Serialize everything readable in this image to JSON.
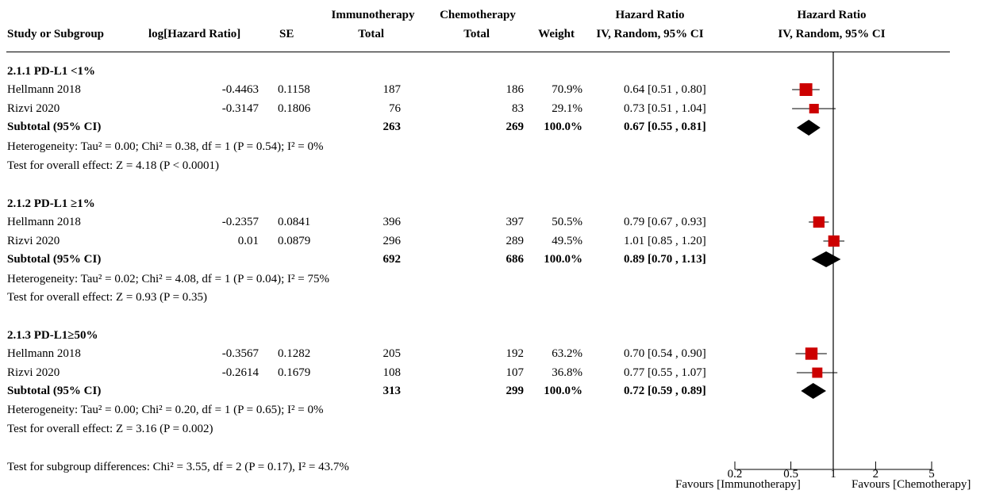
{
  "headers": {
    "study": "Study or Subgroup",
    "loghr": "log[Hazard Ratio]",
    "se": "SE",
    "exp_group": "Immunotherapy",
    "exp_total": "Total",
    "ctl_group": "Chemotherapy",
    "ctl_total": "Total",
    "weight": "Weight",
    "hr_col": "Hazard Ratio",
    "hr_col_method": "IV, Random, 95% CI",
    "plot_col": "Hazard Ratio",
    "plot_col_method": "IV, Random, 95% CI"
  },
  "subgroups": [
    {
      "title": "2.1.1 PD-L1 <1%",
      "studies": [
        {
          "name": "Hellmann 2018",
          "loghr": "-0.4463",
          "se": "0.1158",
          "exp_total": "187",
          "ctl_total": "186",
          "weight": "70.9%",
          "ci_text": "0.64 [0.51 , 0.80]"
        },
        {
          "name": "Rizvi 2020",
          "loghr": "-0.3147",
          "se": "0.1806",
          "exp_total": "76",
          "ctl_total": "83",
          "weight": "29.1%",
          "ci_text": "0.73 [0.51 , 1.04]"
        }
      ],
      "subtotal": {
        "label": "Subtotal (95% CI)",
        "exp_total": "263",
        "ctl_total": "269",
        "weight": "100.0%",
        "ci_text": "0.67 [0.55 , 0.81]"
      },
      "heterogeneity": "Heterogeneity: Tau² = 0.00; Chi² = 0.38, df = 1 (P = 0.54); I² = 0%",
      "overall_effect": "Test for overall effect: Z = 4.18 (P < 0.0001)"
    },
    {
      "title": "2.1.2 PD-L1 ≥1%",
      "studies": [
        {
          "name": "Hellmann 2018",
          "loghr": "-0.2357",
          "se": "0.0841",
          "exp_total": "396",
          "ctl_total": "397",
          "weight": "50.5%",
          "ci_text": "0.79 [0.67 , 0.93]"
        },
        {
          "name": "Rizvi 2020",
          "loghr": "0.01",
          "se": "0.0879",
          "exp_total": "296",
          "ctl_total": "289",
          "weight": "49.5%",
          "ci_text": "1.01 [0.85 , 1.20]"
        }
      ],
      "subtotal": {
        "label": "Subtotal (95% CI)",
        "exp_total": "692",
        "ctl_total": "686",
        "weight": "100.0%",
        "ci_text": "0.89 [0.70 , 1.13]"
      },
      "heterogeneity": "Heterogeneity: Tau² = 0.02; Chi² = 4.08, df = 1 (P = 0.04); I² = 75%",
      "overall_effect": "Test for overall effect: Z = 0.93 (P = 0.35)"
    },
    {
      "title": "2.1.3 PD-L1≥50%",
      "studies": [
        {
          "name": "Hellmann 2018",
          "loghr": "-0.3567",
          "se": "0.1282",
          "exp_total": "205",
          "ctl_total": "192",
          "weight": "63.2%",
          "ci_text": "0.70 [0.54 , 0.90]"
        },
        {
          "name": "Rizvi 2020",
          "loghr": "-0.2614",
          "se": "0.1679",
          "exp_total": "108",
          "ctl_total": "107",
          "weight": "36.8%",
          "ci_text": "0.77 [0.55 , 1.07]"
        }
      ],
      "subtotal": {
        "label": "Subtotal (95% CI)",
        "exp_total": "313",
        "ctl_total": "299",
        "weight": "100.0%",
        "ci_text": "0.72 [0.59 , 0.89]"
      },
      "heterogeneity": "Heterogeneity: Tau² = 0.00; Chi² = 0.20, df = 1 (P = 0.65); I² = 0%",
      "overall_effect": "Test for overall effect: Z = 3.16 (P = 0.002)"
    }
  ],
  "subgroup_differences": "Test for subgroup differences: Chi² = 3.55, df = 2 (P = 0.17), I² = 43.7%",
  "chart_data": {
    "type": "forest",
    "scale": "log",
    "reference_line": 1,
    "xlim": [
      0.2,
      5
    ],
    "ticks": [
      0.2,
      0.5,
      1,
      2,
      5
    ],
    "tick_labels": [
      "0.2",
      "0.5",
      "1",
      "2",
      "5"
    ],
    "favours_left": "Favours [Immunotherapy]",
    "favours_right": "Favours [Chemotherapy]",
    "colors": {
      "study_marker": "#cc0000",
      "diamond": "#000000",
      "lines": "#000000"
    },
    "studies": [
      {
        "subgroup": "2.1.1 PD-L1 <1%",
        "name": "Hellmann 2018",
        "hr": 0.64,
        "lo": 0.51,
        "hi": 0.8,
        "weight": 70.9
      },
      {
        "subgroup": "2.1.1 PD-L1 <1%",
        "name": "Rizvi 2020",
        "hr": 0.73,
        "lo": 0.51,
        "hi": 1.04,
        "weight": 29.1
      },
      {
        "subgroup": "2.1.2 PD-L1 ≥1%",
        "name": "Hellmann 2018",
        "hr": 0.79,
        "lo": 0.67,
        "hi": 0.93,
        "weight": 50.5
      },
      {
        "subgroup": "2.1.2 PD-L1 ≥1%",
        "name": "Rizvi 2020",
        "hr": 1.01,
        "lo": 0.85,
        "hi": 1.2,
        "weight": 49.5
      },
      {
        "subgroup": "2.1.3 PD-L1≥50%",
        "name": "Hellmann 2018",
        "hr": 0.7,
        "lo": 0.54,
        "hi": 0.9,
        "weight": 63.2
      },
      {
        "subgroup": "2.1.3 PD-L1≥50%",
        "name": "Rizvi 2020",
        "hr": 0.77,
        "lo": 0.55,
        "hi": 1.07,
        "weight": 36.8
      }
    ],
    "subtotals": [
      {
        "subgroup": "2.1.1 PD-L1 <1%",
        "hr": 0.67,
        "lo": 0.55,
        "hi": 0.81
      },
      {
        "subgroup": "2.1.2 PD-L1 ≥1%",
        "hr": 0.89,
        "lo": 0.7,
        "hi": 1.13
      },
      {
        "subgroup": "2.1.3 PD-L1≥50%",
        "hr": 0.72,
        "lo": 0.59,
        "hi": 0.89
      }
    ]
  }
}
